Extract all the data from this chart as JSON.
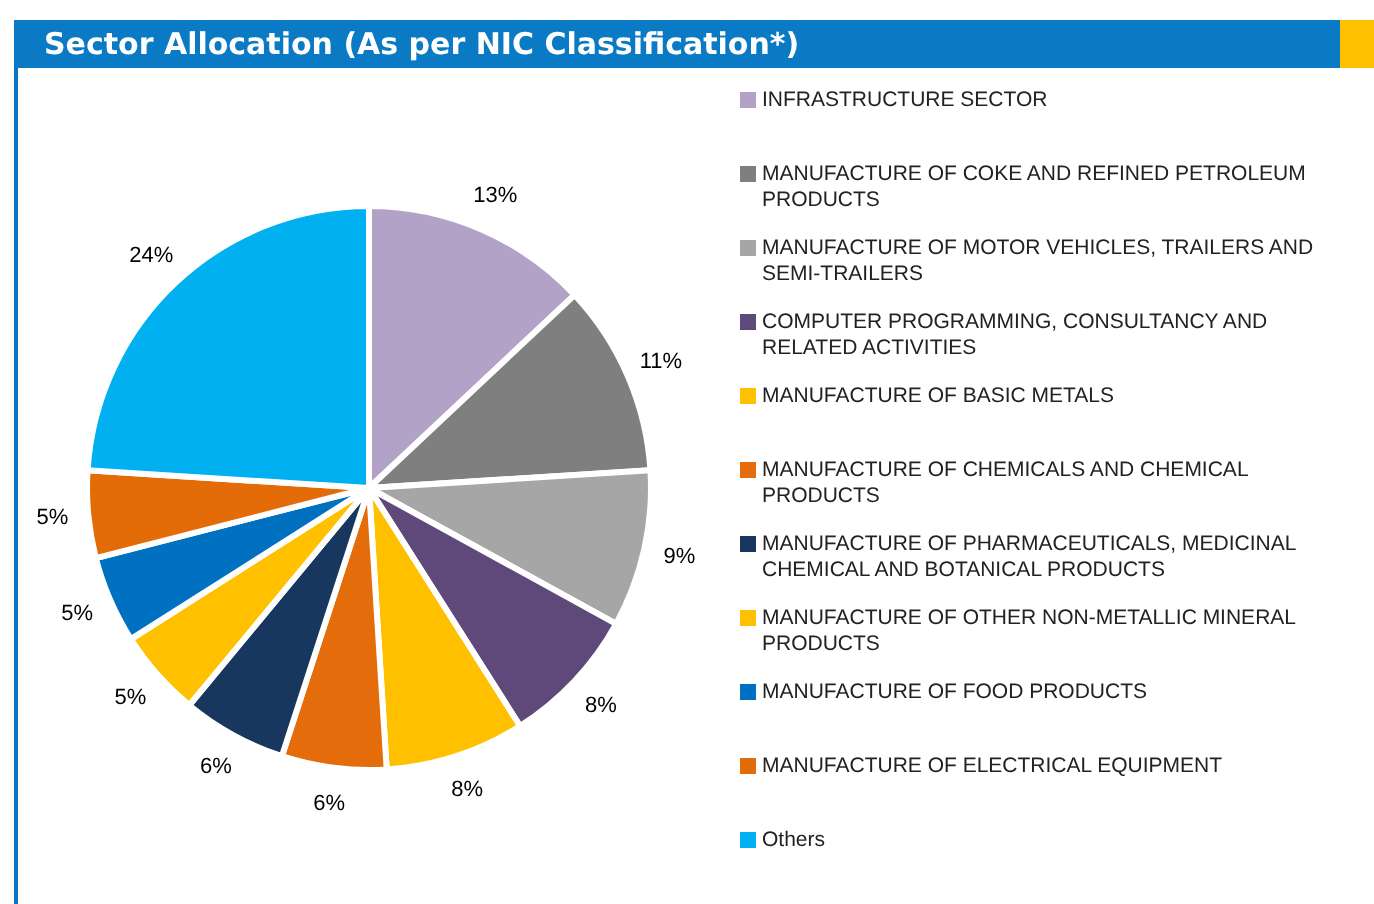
{
  "chart_data": {
    "type": "pie",
    "title": "Sector Allocation (As per NIC Classification*)",
    "categories": [
      "INFRASTRUCTURE SECTOR",
      "MANUFACTURE OF COKE AND REFINED PETROLEUM PRODUCTS",
      "MANUFACTURE OF MOTOR VEHICLES, TRAILERS AND SEMI-TRAILERS",
      "COMPUTER PROGRAMMING, CONSULTANCY AND RELATED ACTIVITIES",
      "MANUFACTURE OF BASIC METALS",
      "MANUFACTURE OF CHEMICALS AND CHEMICAL PRODUCTS",
      "MANUFACTURE OF PHARMACEUTICALS, MEDICINAL CHEMICAL AND BOTANICAL PRODUCTS",
      "MANUFACTURE OF OTHER NON-METALLIC MINERAL PRODUCTS",
      "MANUFACTURE OF FOOD PRODUCTS",
      "MANUFACTURE OF ELECTRICAL EQUIPMENT",
      "Others"
    ],
    "values": [
      13,
      11,
      9,
      8,
      8,
      6,
      6,
      5,
      5,
      5,
      24
    ],
    "value_labels": [
      "13%",
      "11%",
      "9%",
      "8%",
      "8%",
      "6%",
      "6%",
      "5%",
      "5%",
      "5%",
      "24%"
    ],
    "colors": [
      "#b3a2c7",
      "#7f7f7f",
      "#a6a6a6",
      "#5f497a",
      "#ffc000",
      "#e46c0a",
      "#17375e",
      "#ffc000",
      "#0070c0",
      "#e36c09",
      "#00b0f0"
    ],
    "legend": "right"
  }
}
